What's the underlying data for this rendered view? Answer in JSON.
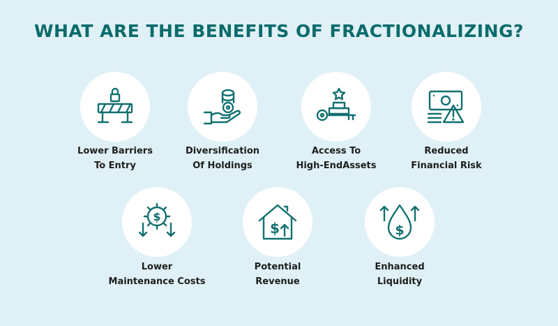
{
  "title": "WHAT ARE THE BENEFITS OF FRACTIONALIZING?",
  "benefits": [
    {
      "icon": "barrier-lock-icon",
      "line1": "Lower Barriers",
      "line2": "To Entry"
    },
    {
      "icon": "hand-coins-icon",
      "line1": "Diversification",
      "line2": "Of Holdings"
    },
    {
      "icon": "key-star-icon",
      "line1": "Access To",
      "line2": "High-EndAssets"
    },
    {
      "icon": "money-warning-icon",
      "line1": "Reduced",
      "line2": "Financial Risk"
    },
    {
      "icon": "gear-dollar-icon",
      "line1": "Lower",
      "line2": "Maintenance Costs"
    },
    {
      "icon": "house-dollar-icon",
      "line1": "Potential",
      "line2": "Revenue"
    },
    {
      "icon": "drop-dollar-icon",
      "line1": "Enhanced",
      "line2": "Liquidity"
    }
  ],
  "colors": {
    "background": "#dff1f6",
    "accent": "#11706f",
    "circle": "#ffffff"
  }
}
